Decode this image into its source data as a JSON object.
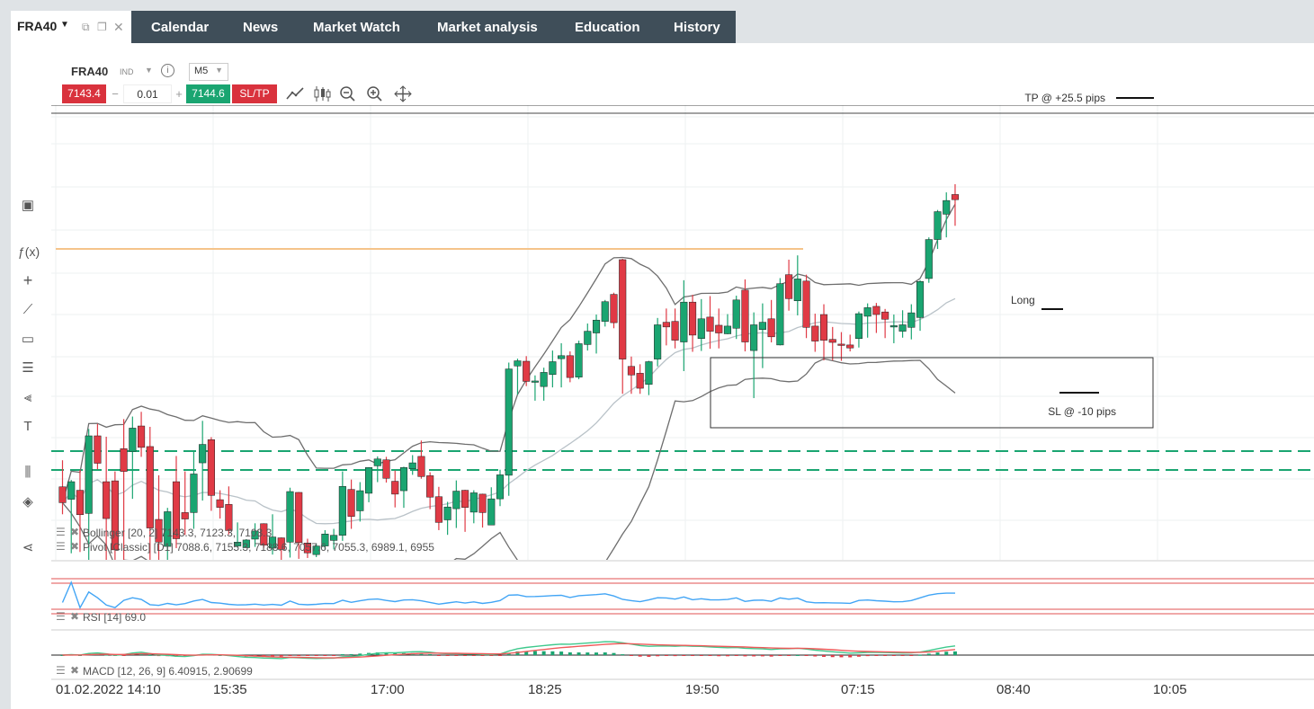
{
  "window": {
    "symbol": "FRA40",
    "nav": [
      "Calendar",
      "News",
      "Market Watch",
      "Market analysis",
      "Education",
      "History"
    ]
  },
  "chart_header": {
    "symbol": "FRA40",
    "asset_class": "IND",
    "timeframe": "M5",
    "bid": "7143.4",
    "quantity": "0.01",
    "ask": "7144.6",
    "sltp_label": "SL/TP"
  },
  "annotations": {
    "tp": "TP @ +25.5 pips",
    "sl": "SL @ -10 pips",
    "entry": "Long"
  },
  "indicators": {
    "bollinger": "Bollinger [20, 2] 7143.3, 7123.3, 7103.3",
    "pivot": "Pivot [Classic] [D1] 7088.6, 7155.3, 7188.6, 7057.6, 7055.3, 6989.1, 6955",
    "rsi": "RSI [14] 69.0",
    "macd": "MACD [12, 26, 9] 6.40915, 2.90699"
  },
  "time_axis": [
    "01.02.2022 14:10",
    "15:35",
    "17:00",
    "18:25",
    "19:50",
    "07:15",
    "08:40",
    "10:05"
  ],
  "colors": {
    "bull": "#1aa571",
    "bear": "#e03a45",
    "nav_bg": "#3f4e59",
    "bb": "#6e6e6e",
    "bb_mid": "#b9c2c8",
    "rsi": "#42a5f5",
    "macd_line": "#3fc98d",
    "macd_signal": "#ef5a5a",
    "pivot": "#1aa571",
    "hline_orange": "#f5c48a"
  },
  "chart_data": {
    "type": "candlestick",
    "timeframe": "M5",
    "tp_level": 7146.0,
    "sl_level": 7117.4,
    "candles": [
      {
        "o": 7076.4,
        "h": 7082.6,
        "l": 7070.0,
        "c": 7072.7
      },
      {
        "o": 7073.5,
        "h": 7078.0,
        "l": 7060.9,
        "c": 7077.6
      },
      {
        "o": 7075.6,
        "h": 7080.3,
        "l": 7061.2,
        "c": 7069.9
      },
      {
        "o": 7070.2,
        "h": 7089.9,
        "l": 7058.2,
        "c": 7088.3
      },
      {
        "o": 7088.3,
        "h": 7091.1,
        "l": 7080.5,
        "c": 7081.9
      },
      {
        "o": 7077.6,
        "h": 7088.1,
        "l": 7057.5,
        "c": 7069.0
      },
      {
        "o": 7077.8,
        "h": 7080.0,
        "l": 7052.5,
        "c": 7061.7
      },
      {
        "o": 7085.3,
        "h": 7092.2,
        "l": 7049.6,
        "c": 7080.0
      },
      {
        "o": 7084.7,
        "h": 7092.8,
        "l": 7073.6,
        "c": 7090.1
      },
      {
        "o": 7090.6,
        "h": 7093.9,
        "l": 7083.4,
        "c": 7085.6
      },
      {
        "o": 7085.8,
        "h": 7090.4,
        "l": 7055.3,
        "c": 7066.8
      },
      {
        "o": 7068.8,
        "h": 7079.1,
        "l": 7056.2,
        "c": 7063.5
      },
      {
        "o": 7062.5,
        "h": 7071.5,
        "l": 7059.1,
        "c": 7070.6
      },
      {
        "o": 7077.6,
        "h": 7083.6,
        "l": 7062.1,
        "c": 7064.3
      },
      {
        "o": 7070.4,
        "h": 7080.0,
        "l": 7065.2,
        "c": 7068.9
      },
      {
        "o": 7070.4,
        "h": 7084.9,
        "l": 7066.6,
        "c": 7079.4
      },
      {
        "o": 7082.0,
        "h": 7091.8,
        "l": 7073.2,
        "c": 7086.3
      },
      {
        "o": 7087.4,
        "h": 7088.0,
        "l": 7070.8,
        "c": 7074.4
      },
      {
        "o": 7073.4,
        "h": 7075.6,
        "l": 7069.0,
        "c": 7071.6
      },
      {
        "o": 7072.3,
        "h": 7076.5,
        "l": 7065.3,
        "c": 7066.2
      },
      {
        "o": 7062.6,
        "h": 7068.1,
        "l": 7062.2,
        "c": 7063.5
      },
      {
        "o": 7062.2,
        "h": 7064.2,
        "l": 7062.2,
        "c": 7064.0
      },
      {
        "o": 7064.2,
        "h": 7067.9,
        "l": 7062.4,
        "c": 7066.1
      },
      {
        "o": 7067.8,
        "h": 7067.9,
        "l": 7062.2,
        "c": 7062.8
      },
      {
        "o": 7062.1,
        "h": 7070.0,
        "l": 7060.6,
        "c": 7064.7
      },
      {
        "o": 7064.5,
        "h": 7064.6,
        "l": 7059.0,
        "c": 7061.8
      },
      {
        "o": 7063.5,
        "h": 7076.2,
        "l": 7059.9,
        "c": 7075.3
      },
      {
        "o": 7075.1,
        "h": 7075.2,
        "l": 7059.6,
        "c": 7063.4
      },
      {
        "o": 7063.3,
        "h": 7064.3,
        "l": 7059.8,
        "c": 7061.0
      },
      {
        "o": 7060.6,
        "h": 7063.1,
        "l": 7060.0,
        "c": 7062.6
      },
      {
        "o": 7062.6,
        "h": 7066.3,
        "l": 7061.8,
        "c": 7065.4
      },
      {
        "o": 7063.9,
        "h": 7066.6,
        "l": 7061.8,
        "c": 7065.1
      },
      {
        "o": 7065.1,
        "h": 7080.0,
        "l": 7063.8,
        "c": 7076.5
      },
      {
        "o": 7075.8,
        "h": 7078.1,
        "l": 7066.6,
        "c": 7069.5
      },
      {
        "o": 7070.8,
        "h": 7077.5,
        "l": 7068.3,
        "c": 7075.5
      },
      {
        "o": 7074.9,
        "h": 7081.0,
        "l": 7072.8,
        "c": 7080.9
      },
      {
        "o": 7081.3,
        "h": 7083.5,
        "l": 7077.5,
        "c": 7082.9
      },
      {
        "o": 7082.7,
        "h": 7083.4,
        "l": 7077.4,
        "c": 7078.4
      },
      {
        "o": 7077.7,
        "h": 7080.2,
        "l": 7071.6,
        "c": 7074.7
      },
      {
        "o": 7075.5,
        "h": 7081.1,
        "l": 7071.5,
        "c": 7080.9
      },
      {
        "o": 7080.6,
        "h": 7083.8,
        "l": 7079.2,
        "c": 7082.0
      },
      {
        "o": 7083.5,
        "h": 7087.2,
        "l": 7078.3,
        "c": 7078.8
      },
      {
        "o": 7079.0,
        "h": 7079.8,
        "l": 7071.2,
        "c": 7074.0
      },
      {
        "o": 7074.1,
        "h": 7076.4,
        "l": 7066.3,
        "c": 7068.1
      },
      {
        "o": 7068.7,
        "h": 7072.9,
        "l": 7065.2,
        "c": 7071.7
      },
      {
        "o": 7071.3,
        "h": 7077.9,
        "l": 7066.8,
        "c": 7075.4
      },
      {
        "o": 7075.6,
        "h": 7075.7,
        "l": 7065.9,
        "c": 7071.6
      },
      {
        "o": 7070.5,
        "h": 7075.6,
        "l": 7067.9,
        "c": 7075.0
      },
      {
        "o": 7074.7,
        "h": 7074.8,
        "l": 7066.9,
        "c": 7070.4
      },
      {
        "o": 7067.5,
        "h": 7076.3,
        "l": 7067.5,
        "c": 7073.6
      },
      {
        "o": 7073.6,
        "h": 7080.4,
        "l": 7071.9,
        "c": 7079.2
      },
      {
        "o": 7079.1,
        "h": 7105.4,
        "l": 7074.3,
        "c": 7103.9
      },
      {
        "o": 7104.6,
        "h": 7106.3,
        "l": 7097.9,
        "c": 7105.8
      },
      {
        "o": 7105.7,
        "h": 7106.9,
        "l": 7099.9,
        "c": 7101.0
      },
      {
        "o": 7100.8,
        "h": 7102.4,
        "l": 7096.5,
        "c": 7101.1
      },
      {
        "o": 7099.8,
        "h": 7104.2,
        "l": 7096.5,
        "c": 7103.1
      },
      {
        "o": 7102.6,
        "h": 7108.2,
        "l": 7099.6,
        "c": 7105.6
      },
      {
        "o": 7106.3,
        "h": 7109.9,
        "l": 7099.6,
        "c": 7107.0
      },
      {
        "o": 7107.0,
        "h": 7108.0,
        "l": 7100.8,
        "c": 7101.9
      },
      {
        "o": 7102.0,
        "h": 7110.5,
        "l": 7101.5,
        "c": 7109.8
      },
      {
        "o": 7109.6,
        "h": 7114.5,
        "l": 7108.2,
        "c": 7112.7
      },
      {
        "o": 7112.3,
        "h": 7116.6,
        "l": 7107.5,
        "c": 7115.3
      },
      {
        "o": 7115.0,
        "h": 7120.0,
        "l": 7113.8,
        "c": 7119.6
      },
      {
        "o": 7121.3,
        "h": 7121.7,
        "l": 7113.4,
        "c": 7114.7
      },
      {
        "o": 7129.4,
        "h": 7129.6,
        "l": 7098.1,
        "c": 7106.2
      },
      {
        "o": 7104.5,
        "h": 7106.8,
        "l": 7098.1,
        "c": 7102.5
      },
      {
        "o": 7102.9,
        "h": 7105.0,
        "l": 7098.1,
        "c": 7099.4
      },
      {
        "o": 7100.3,
        "h": 7105.8,
        "l": 7097.8,
        "c": 7105.6
      },
      {
        "o": 7106.2,
        "h": 7115.8,
        "l": 7104.5,
        "c": 7114.2
      },
      {
        "o": 7114.8,
        "h": 7118.0,
        "l": 7109.4,
        "c": 7113.7
      },
      {
        "o": 7115.0,
        "h": 7118.0,
        "l": 7108.7,
        "c": 7110.6
      },
      {
        "o": 7110.2,
        "h": 7124.6,
        "l": 7103.4,
        "c": 7119.5
      },
      {
        "o": 7119.5,
        "h": 7121.2,
        "l": 7107.9,
        "c": 7111.8
      },
      {
        "o": 7111.0,
        "h": 7120.2,
        "l": 7108.1,
        "c": 7115.6
      },
      {
        "o": 7116.0,
        "h": 7120.9,
        "l": 7108.6,
        "c": 7112.7
      },
      {
        "o": 7114.1,
        "h": 7118.0,
        "l": 7108.7,
        "c": 7112.3
      },
      {
        "o": 7112.1,
        "h": 7116.7,
        "l": 7112.0,
        "c": 7113.9
      },
      {
        "o": 7113.4,
        "h": 7121.0,
        "l": 7110.9,
        "c": 7120.0
      },
      {
        "o": 7122.3,
        "h": 7124.8,
        "l": 7108.0,
        "c": 7110.2
      },
      {
        "o": 7108.2,
        "h": 7117.1,
        "l": 7097.1,
        "c": 7114.2
      },
      {
        "o": 7113.1,
        "h": 7119.2,
        "l": 7104.1,
        "c": 7114.8
      },
      {
        "o": 7115.6,
        "h": 7120.0,
        "l": 7110.1,
        "c": 7111.4
      },
      {
        "o": 7109.5,
        "h": 7125.1,
        "l": 7109.4,
        "c": 7123.8
      },
      {
        "o": 7125.9,
        "h": 7129.4,
        "l": 7117.5,
        "c": 7120.3
      },
      {
        "o": 7119.8,
        "h": 7130.4,
        "l": 7116.4,
        "c": 7124.9
      },
      {
        "o": 7124.4,
        "h": 7125.9,
        "l": 7111.1,
        "c": 7113.6
      },
      {
        "o": 7113.9,
        "h": 7116.8,
        "l": 7107.9,
        "c": 7110.4
      },
      {
        "o": 7116.6,
        "h": 7119.0,
        "l": 7105.9,
        "c": 7110.6
      },
      {
        "o": 7110.8,
        "h": 7113.7,
        "l": 7105.9,
        "c": 7110.1
      },
      {
        "o": 7109.7,
        "h": 7112.5,
        "l": 7105.8,
        "c": 7109.6
      },
      {
        "o": 7109.5,
        "h": 7111.9,
        "l": 7108.0,
        "c": 7108.8
      },
      {
        "o": 7111.0,
        "h": 7117.3,
        "l": 7108.9,
        "c": 7116.8
      },
      {
        "o": 7116.2,
        "h": 7119.2,
        "l": 7111.2,
        "c": 7118.2
      },
      {
        "o": 7118.5,
        "h": 7119.3,
        "l": 7112.3,
        "c": 7116.6
      },
      {
        "o": 7117.2,
        "h": 7117.9,
        "l": 7111.1,
        "c": 7115.5
      },
      {
        "o": 7113.7,
        "h": 7116.6,
        "l": 7109.9,
        "c": 7114.0
      },
      {
        "o": 7112.7,
        "h": 7117.6,
        "l": 7111.2,
        "c": 7114.2
      },
      {
        "o": 7113.6,
        "h": 7119.0,
        "l": 7110.8,
        "c": 7117.0
      },
      {
        "o": 7115.9,
        "h": 7124.6,
        "l": 7112.8,
        "c": 7124.3
      },
      {
        "o": 7125.0,
        "h": 7134.6,
        "l": 7124.0,
        "c": 7134.1
      },
      {
        "o": 7134.1,
        "h": 7141.0,
        "l": 7131.9,
        "c": 7140.6
      },
      {
        "o": 7140.0,
        "h": 7145.1,
        "l": 7134.6,
        "c": 7143.2
      },
      {
        "o": 7144.6,
        "h": 7147.0,
        "l": 7137.3,
        "c": 7143.4
      }
    ]
  }
}
